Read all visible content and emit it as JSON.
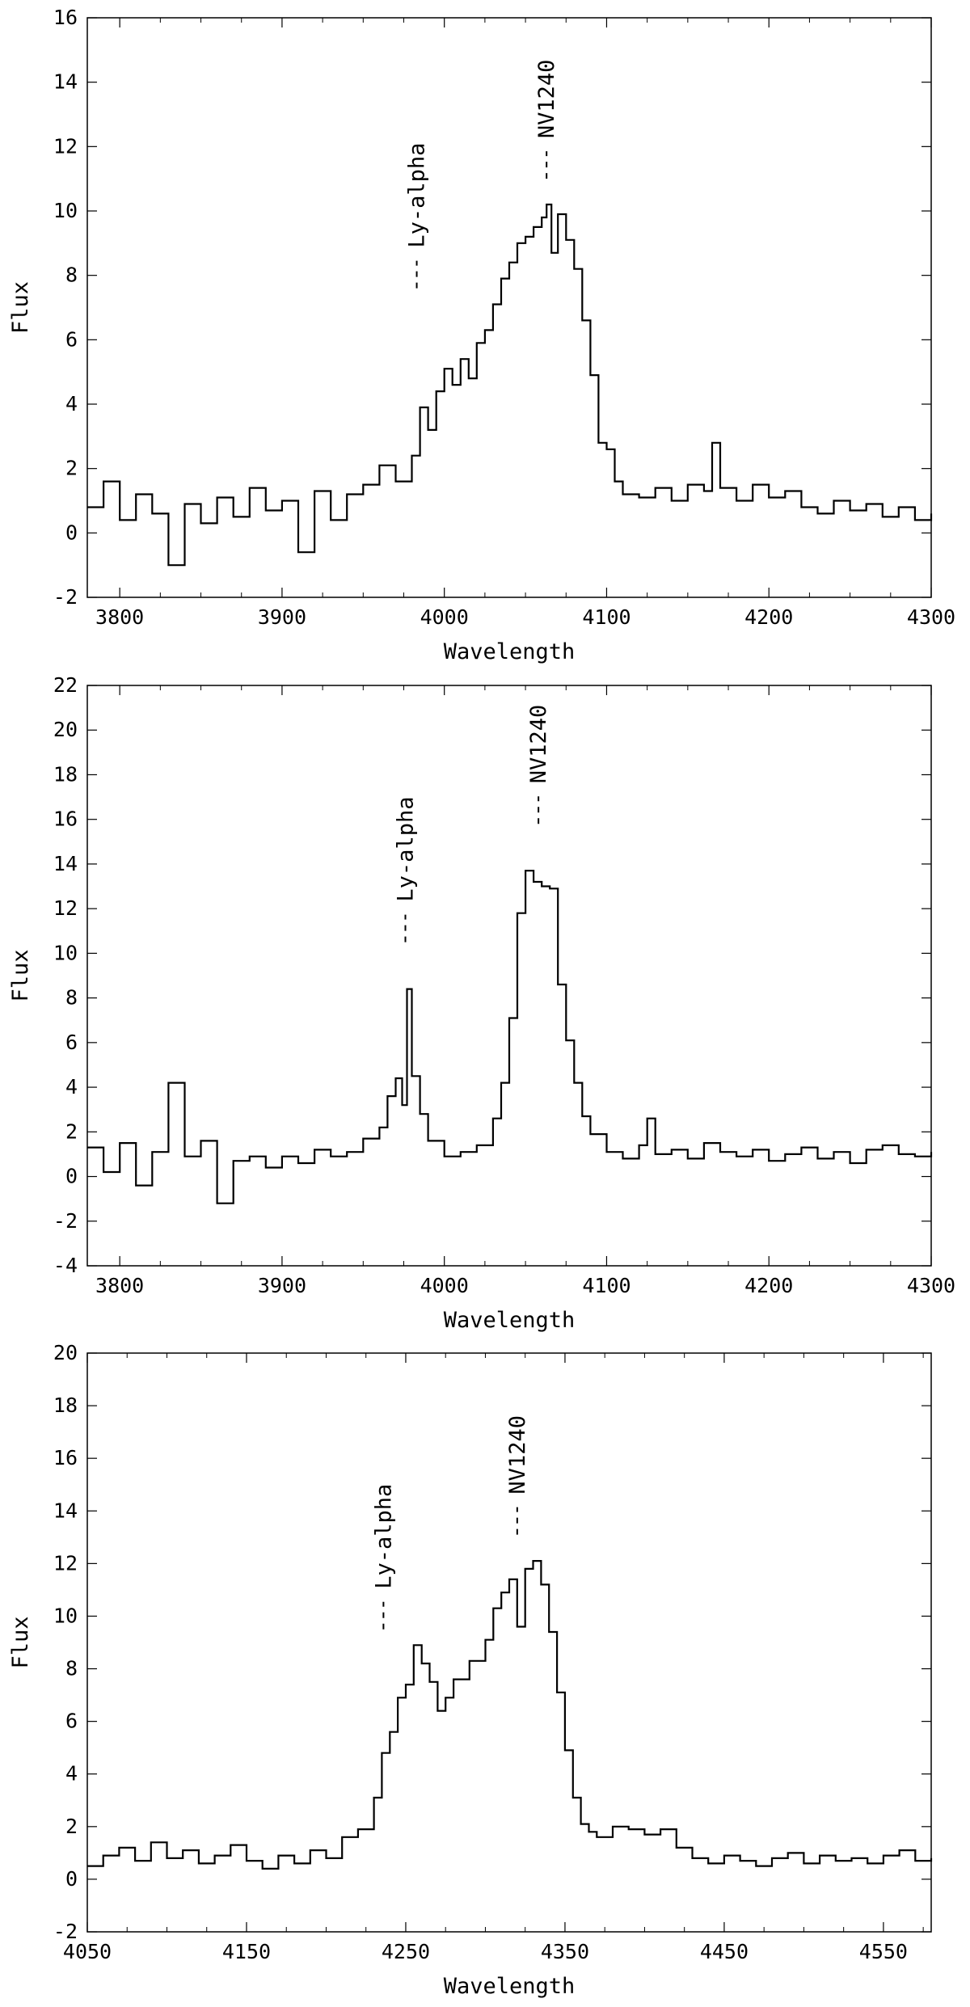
{
  "chart_data": [
    {
      "type": "line",
      "xlabel": "Wavelength",
      "ylabel": "Flux",
      "xlim": [
        3780,
        4300
      ],
      "ylim": [
        -2,
        16
      ],
      "xticks": [
        3800,
        3900,
        4000,
        4100,
        4200,
        4300
      ],
      "yticks": [
        -2,
        0,
        2,
        4,
        6,
        8,
        10,
        12,
        14,
        16
      ],
      "xtick_labels": [
        "3800",
        "3900",
        "4000",
        "4100",
        "4200",
        "4300"
      ],
      "ytick_labels": [
        "-2",
        "0",
        "2",
        "4",
        "6",
        "8",
        "10",
        "12",
        "14",
        "16"
      ],
      "annotations": [
        {
          "text": "Ly-alpha",
          "x": 3983,
          "y_mark": 7.6
        },
        {
          "text": "NV1240",
          "x": 4063,
          "y_mark": 11.0
        }
      ],
      "series": [
        {
          "style": "step",
          "x": [
            3780,
            3790,
            3800,
            3810,
            3820,
            3830,
            3840,
            3850,
            3860,
            3870,
            3880,
            3890,
            3900,
            3910,
            3920,
            3930,
            3940,
            3950,
            3960,
            3970,
            3980,
            3985,
            3990,
            3995,
            4000,
            4005,
            4010,
            4015,
            4020,
            4025,
            4030,
            4035,
            4040,
            4045,
            4050,
            4055,
            4060,
            4063,
            4066,
            4070,
            4075,
            4080,
            4085,
            4090,
            4095,
            4100,
            4105,
            4110,
            4120,
            4130,
            4140,
            4150,
            4160,
            4165,
            4170,
            4180,
            4190,
            4200,
            4210,
            4220,
            4230,
            4240,
            4250,
            4260,
            4270,
            4280,
            4290,
            4300
          ],
          "y": [
            0.8,
            1.6,
            0.4,
            1.2,
            0.6,
            -1.0,
            0.9,
            0.3,
            1.1,
            0.5,
            1.4,
            0.7,
            1.0,
            -0.6,
            1.3,
            0.4,
            1.2,
            1.5,
            2.1,
            1.6,
            2.4,
            3.9,
            3.2,
            4.4,
            5.1,
            4.6,
            5.4,
            4.8,
            5.9,
            6.3,
            7.1,
            7.9,
            8.4,
            9.0,
            9.2,
            9.5,
            9.8,
            10.2,
            8.7,
            9.9,
            9.1,
            8.2,
            6.6,
            4.9,
            2.8,
            2.6,
            1.6,
            1.2,
            1.1,
            1.4,
            1.0,
            1.5,
            1.3,
            2.8,
            1.4,
            1.0,
            1.5,
            1.1,
            1.3,
            0.8,
            0.6,
            1.0,
            0.7,
            0.9,
            0.5,
            0.8,
            0.4,
            0.6
          ]
        }
      ]
    },
    {
      "type": "line",
      "xlabel": "Wavelength",
      "ylabel": "Flux",
      "xlim": [
        3780,
        4300
      ],
      "ylim": [
        -4,
        22
      ],
      "xticks": [
        3800,
        3900,
        4000,
        4100,
        4200,
        4300
      ],
      "yticks": [
        -4,
        -2,
        0,
        2,
        4,
        6,
        8,
        10,
        12,
        14,
        16,
        18,
        20,
        22
      ],
      "xtick_labels": [
        "3800",
        "3900",
        "4000",
        "4100",
        "4200",
        "4300"
      ],
      "ytick_labels": [
        "-4",
        "-2",
        "0",
        "2",
        "4",
        "6",
        "8",
        "10",
        "12",
        "14",
        "16",
        "18",
        "20",
        "22"
      ],
      "annotations": [
        {
          "text": "Ly-alpha",
          "x": 3976,
          "y_mark": 10.5
        },
        {
          "text": "NV1240",
          "x": 4058,
          "y_mark": 15.8
        }
      ],
      "series": [
        {
          "style": "step",
          "x": [
            3780,
            3790,
            3800,
            3810,
            3820,
            3830,
            3840,
            3850,
            3860,
            3870,
            3880,
            3890,
            3900,
            3910,
            3920,
            3930,
            3940,
            3950,
            3960,
            3965,
            3970,
            3974,
            3977,
            3980,
            3985,
            3990,
            4000,
            4010,
            4020,
            4030,
            4035,
            4040,
            4045,
            4050,
            4055,
            4060,
            4065,
            4070,
            4075,
            4080,
            4085,
            4090,
            4100,
            4110,
            4120,
            4125,
            4130,
            4140,
            4150,
            4160,
            4170,
            4180,
            4190,
            4200,
            4210,
            4220,
            4230,
            4240,
            4250,
            4260,
            4270,
            4280,
            4290,
            4300
          ],
          "y": [
            1.3,
            0.2,
            1.5,
            -0.4,
            1.1,
            4.2,
            0.9,
            1.6,
            -1.2,
            0.7,
            0.9,
            0.4,
            0.9,
            0.6,
            1.2,
            0.9,
            1.1,
            1.7,
            2.2,
            3.6,
            4.4,
            3.2,
            8.4,
            4.5,
            2.8,
            1.6,
            0.9,
            1.1,
            1.4,
            2.6,
            4.2,
            7.1,
            11.8,
            13.7,
            13.2,
            13.0,
            12.9,
            8.6,
            6.1,
            4.2,
            2.7,
            1.9,
            1.1,
            0.8,
            1.4,
            2.6,
            1.0,
            1.2,
            0.8,
            1.5,
            1.1,
            0.9,
            1.2,
            0.7,
            1.0,
            1.3,
            0.8,
            1.1,
            0.6,
            1.2,
            1.4,
            1.0,
            0.9,
            1.1
          ]
        }
      ]
    },
    {
      "type": "line",
      "xlabel": "Wavelength",
      "ylabel": "Flux",
      "xlim": [
        4050,
        4580
      ],
      "ylim": [
        -2,
        20
      ],
      "xticks": [
        4050,
        4150,
        4250,
        4350,
        4450,
        4550
      ],
      "yticks": [
        -2,
        0,
        2,
        4,
        6,
        8,
        10,
        12,
        14,
        16,
        18,
        20
      ],
      "xtick_labels": [
        "4050",
        "4150",
        "4250",
        "4350",
        "4450",
        "4550"
      ],
      "ytick_labels": [
        "-2",
        "0",
        "2",
        "4",
        "6",
        "8",
        "10",
        "12",
        "14",
        "16",
        "18",
        "20"
      ],
      "annotations": [
        {
          "text": "Ly-alpha",
          "x": 4236,
          "y_mark": 9.5
        },
        {
          "text": "NV1240",
          "x": 4320,
          "y_mark": 13.1
        }
      ],
      "series": [
        {
          "style": "step",
          "x": [
            4050,
            4060,
            4070,
            4080,
            4090,
            4100,
            4110,
            4120,
            4130,
            4140,
            4150,
            4160,
            4170,
            4180,
            4190,
            4200,
            4210,
            4220,
            4230,
            4235,
            4240,
            4245,
            4250,
            4255,
            4260,
            4265,
            4270,
            4275,
            4280,
            4290,
            4300,
            4305,
            4310,
            4315,
            4320,
            4325,
            4330,
            4335,
            4340,
            4345,
            4350,
            4355,
            4360,
            4365,
            4370,
            4380,
            4390,
            4400,
            4410,
            4420,
            4430,
            4440,
            4450,
            4460,
            4470,
            4480,
            4490,
            4500,
            4510,
            4520,
            4530,
            4540,
            4550,
            4560,
            4570,
            4580
          ],
          "y": [
            0.5,
            0.9,
            1.2,
            0.7,
            1.4,
            0.8,
            1.1,
            0.6,
            0.9,
            1.3,
            0.7,
            0.4,
            0.9,
            0.6,
            1.1,
            0.8,
            1.6,
            1.9,
            3.1,
            4.8,
            5.6,
            6.9,
            7.4,
            8.9,
            8.2,
            7.5,
            6.4,
            6.9,
            7.6,
            8.3,
            9.1,
            10.3,
            10.9,
            11.4,
            9.6,
            11.8,
            12.1,
            11.2,
            9.4,
            7.1,
            4.9,
            3.1,
            2.1,
            1.8,
            1.6,
            2.0,
            1.9,
            1.7,
            1.9,
            1.2,
            0.8,
            0.6,
            0.9,
            0.7,
            0.5,
            0.8,
            1.0,
            0.6,
            0.9,
            0.7,
            0.8,
            0.6,
            0.9,
            1.1,
            0.7,
            0.8
          ]
        }
      ]
    }
  ]
}
